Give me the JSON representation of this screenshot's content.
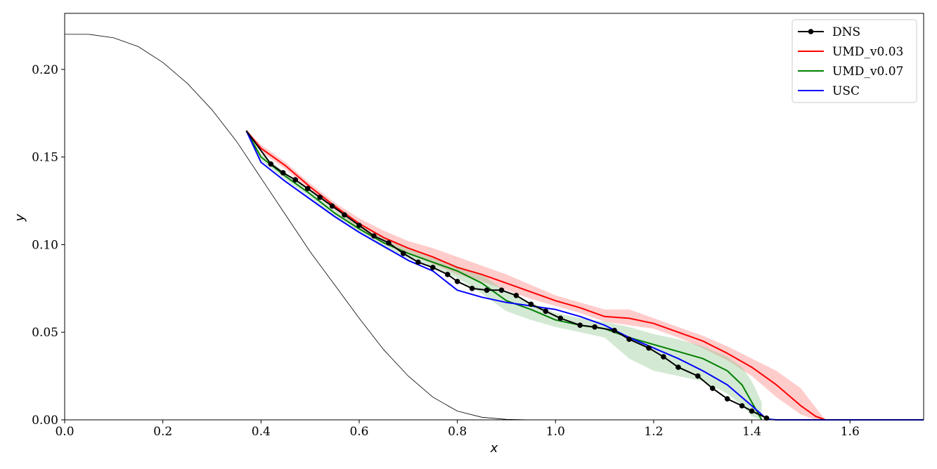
{
  "chart_data": {
    "type": "line",
    "xlabel": "x",
    "ylabel": "y",
    "xlim": [
      0.0,
      1.75
    ],
    "ylim": [
      0.0,
      0.232
    ],
    "xticks": [
      "0.0",
      "0.2",
      "0.4",
      "0.6",
      "0.8",
      "1.0",
      "1.2",
      "1.4",
      "1.6"
    ],
    "xtick_values": [
      0.0,
      0.2,
      0.4,
      0.6,
      0.8,
      1.0,
      1.2,
      1.4,
      1.6
    ],
    "yticks": [
      "0.00",
      "0.05",
      "0.10",
      "0.15",
      "0.20"
    ],
    "ytick_values": [
      0.0,
      0.05,
      0.1,
      0.15,
      0.2
    ],
    "grid": false,
    "legend_position": "top-right",
    "geometry_curve": {
      "color": "#000000",
      "x": [
        0.0,
        0.05,
        0.1,
        0.15,
        0.2,
        0.25,
        0.3,
        0.35,
        0.4,
        0.45,
        0.5,
        0.55,
        0.6,
        0.65,
        0.7,
        0.75,
        0.8,
        0.85,
        0.9,
        0.95,
        1.0,
        1.75
      ],
      "y": [
        0.22,
        0.22,
        0.218,
        0.213,
        0.204,
        0.192,
        0.177,
        0.159,
        0.138,
        0.117,
        0.096,
        0.077,
        0.058,
        0.04,
        0.025,
        0.013,
        0.005,
        0.0015,
        0.0003,
        0.0,
        0.0,
        0.0
      ]
    },
    "series": [
      {
        "name": "DNS",
        "color": "#000000",
        "marker": "circle",
        "x": [
          0.37,
          0.42,
          0.445,
          0.47,
          0.495,
          0.52,
          0.545,
          0.57,
          0.6,
          0.63,
          0.66,
          0.69,
          0.72,
          0.75,
          0.78,
          0.8,
          0.83,
          0.86,
          0.89,
          0.92,
          0.95,
          0.98,
          1.01,
          1.05,
          1.08,
          1.12,
          1.15,
          1.19,
          1.22,
          1.25,
          1.29,
          1.32,
          1.35,
          1.38,
          1.4,
          1.43
        ],
        "y": [
          0.165,
          0.146,
          0.141,
          0.137,
          0.132,
          0.127,
          0.122,
          0.117,
          0.111,
          0.105,
          0.101,
          0.095,
          0.09,
          0.087,
          0.083,
          0.079,
          0.075,
          0.074,
          0.074,
          0.071,
          0.066,
          0.062,
          0.058,
          0.054,
          0.053,
          0.051,
          0.046,
          0.041,
          0.036,
          0.03,
          0.025,
          0.018,
          0.012,
          0.008,
          0.005,
          0.001
        ]
      },
      {
        "name": "UMD_v0.03",
        "color": "#ff0000",
        "band_color": "#ff8080",
        "x": [
          0.37,
          0.4,
          0.45,
          0.5,
          0.55,
          0.6,
          0.65,
          0.7,
          0.75,
          0.8,
          0.85,
          0.9,
          0.95,
          1.0,
          1.05,
          1.1,
          1.15,
          1.2,
          1.25,
          1.3,
          1.35,
          1.4,
          1.45,
          1.5,
          1.53,
          1.55
        ],
        "y": [
          0.165,
          0.155,
          0.145,
          0.133,
          0.122,
          0.112,
          0.104,
          0.098,
          0.093,
          0.087,
          0.083,
          0.078,
          0.073,
          0.068,
          0.064,
          0.059,
          0.058,
          0.055,
          0.05,
          0.045,
          0.038,
          0.03,
          0.02,
          0.008,
          0.002,
          0.0
        ],
        "band_upper": [
          0.165,
          0.157,
          0.147,
          0.135,
          0.124,
          0.115,
          0.108,
          0.102,
          0.098,
          0.093,
          0.088,
          0.083,
          0.077,
          0.071,
          0.067,
          0.063,
          0.063,
          0.058,
          0.053,
          0.048,
          0.042,
          0.035,
          0.028,
          0.018,
          0.007,
          0.0
        ],
        "band_lower": [
          0.165,
          0.153,
          0.143,
          0.131,
          0.12,
          0.109,
          0.101,
          0.095,
          0.089,
          0.083,
          0.079,
          0.074,
          0.069,
          0.065,
          0.061,
          0.056,
          0.054,
          0.052,
          0.047,
          0.041,
          0.034,
          0.025,
          0.013,
          0.003,
          0.0,
          0.0
        ]
      },
      {
        "name": "UMD_v0.07",
        "color": "#008000",
        "band_color": "#90c890",
        "x": [
          0.37,
          0.4,
          0.45,
          0.5,
          0.55,
          0.6,
          0.65,
          0.7,
          0.75,
          0.8,
          0.85,
          0.9,
          0.95,
          1.0,
          1.05,
          1.1,
          1.15,
          1.2,
          1.25,
          1.3,
          1.35,
          1.38,
          1.4,
          1.42
        ],
        "y": [
          0.165,
          0.15,
          0.139,
          0.129,
          0.118,
          0.109,
          0.101,
          0.095,
          0.09,
          0.085,
          0.078,
          0.068,
          0.063,
          0.057,
          0.054,
          0.052,
          0.047,
          0.043,
          0.039,
          0.035,
          0.028,
          0.02,
          0.01,
          0.0
        ],
        "band_upper": [
          0.165,
          0.152,
          0.141,
          0.131,
          0.12,
          0.111,
          0.104,
          0.098,
          0.093,
          0.088,
          0.083,
          0.073,
          0.067,
          0.061,
          0.058,
          0.056,
          0.053,
          0.049,
          0.046,
          0.042,
          0.036,
          0.03,
          0.022,
          0.01
        ],
        "band_lower": [
          0.165,
          0.148,
          0.137,
          0.127,
          0.116,
          0.107,
          0.098,
          0.092,
          0.087,
          0.081,
          0.072,
          0.062,
          0.057,
          0.053,
          0.05,
          0.047,
          0.035,
          0.028,
          0.025,
          0.022,
          0.015,
          0.008,
          0.002,
          0.0
        ]
      },
      {
        "name": "USC",
        "color": "#0000ff",
        "x": [
          0.37,
          0.4,
          0.45,
          0.5,
          0.55,
          0.6,
          0.65,
          0.7,
          0.75,
          0.8,
          0.85,
          0.9,
          0.95,
          1.0,
          1.05,
          1.1,
          1.15,
          1.2,
          1.25,
          1.3,
          1.35,
          1.4,
          1.43,
          1.45,
          1.75
        ],
        "y": [
          0.165,
          0.147,
          0.136,
          0.126,
          0.116,
          0.107,
          0.099,
          0.091,
          0.085,
          0.074,
          0.07,
          0.067,
          0.065,
          0.063,
          0.059,
          0.054,
          0.047,
          0.041,
          0.035,
          0.028,
          0.02,
          0.008,
          0.0005,
          0.0,
          0.0
        ]
      }
    ]
  }
}
